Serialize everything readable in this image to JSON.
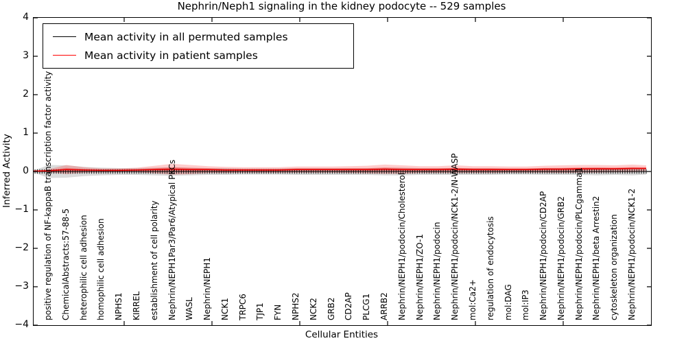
{
  "chart_data": {
    "type": "line",
    "title": "Nephrin/Neph1 signaling in the kidney podocyte -- 529 samples",
    "xlabel": "Cellular Entities",
    "ylabel": "Inferred Activity",
    "ylim": [
      -4,
      4
    ],
    "grid": false,
    "legend_position": "upper left",
    "y_tick_labels": [
      "4",
      "3",
      "2",
      "1",
      "0",
      "−1",
      "−2",
      "−3",
      "−4"
    ],
    "y_tick_values": [
      4,
      3,
      2,
      1,
      0,
      -1,
      -2,
      -3,
      -4
    ],
    "categories": [
      "positive regulation of NF-kappaB transcription factor activity",
      "ChemicalAbstracts:57-88-5",
      "heterophilic cell adhesion",
      "homophilic cell adhesion",
      "NPHS1",
      "KIRREL",
      "establishment of cell polarity",
      "Nephrin/NEPH1Par3/Par6/Atypical PKCs",
      "WASL",
      "Nephrin/NEPH1",
      "NCK1",
      "TRPC6",
      "TJP1",
      "FYN",
      "NPHS2",
      "NCK2",
      "GRB2",
      "CD2AP",
      "PLCG1",
      "ARRB2",
      "Nephrin/NEPH1/podocin/Cholesterol",
      "Nephrin/NEPH1/ZO-1",
      "Nephrin/NEPH1/podocin",
      "Nephrin/NEPH1/podocin/NCK1-2/N-WASP",
      "mol:Ca2+",
      "regulation of endocytosis",
      "mol:DAG",
      "mol:IP3",
      "Nephrin/NEPH1/podocin/CD2AP",
      "Nephrin/NEPH1/podocin/GRB2",
      "Nephrin/NEPH1/podocin/PLCgamma1",
      "Nephrin/NEPH1/beta Arrestin2",
      "cytoskeleton organization",
      "Nephrin/NEPH1/podocin/NCK1-2"
    ],
    "series": [
      {
        "name": "Mean activity in all permuted samples",
        "color": "#000000",
        "values": [
          0,
          0,
          0,
          0,
          0,
          0,
          0,
          0,
          0,
          0,
          0,
          0,
          0,
          0,
          0,
          0,
          0,
          0,
          0,
          0,
          0,
          0,
          0,
          0,
          0,
          0,
          0,
          0,
          0,
          0,
          0,
          0,
          0,
          0
        ],
        "band_std": [
          0.17,
          0.16,
          0.12,
          0.1,
          0.09,
          0.09,
          0.1,
          0.11,
          0.1,
          0.09,
          0.09,
          0.08,
          0.08,
          0.08,
          0.09,
          0.09,
          0.09,
          0.09,
          0.09,
          0.1,
          0.1,
          0.09,
          0.09,
          0.09,
          0.09,
          0.09,
          0.08,
          0.08,
          0.09,
          0.09,
          0.09,
          0.1,
          0.09,
          0.1
        ]
      },
      {
        "name": "Mean activity in patient samples",
        "color": "#ff0000",
        "values": [
          0.02,
          0.05,
          0.04,
          0.03,
          0.03,
          0.04,
          0.05,
          0.06,
          0.05,
          0.05,
          0.04,
          0.04,
          0.04,
          0.04,
          0.05,
          0.05,
          0.05,
          0.05,
          0.05,
          0.06,
          0.05,
          0.05,
          0.05,
          0.06,
          0.05,
          0.05,
          0.05,
          0.05,
          0.06,
          0.06,
          0.07,
          0.07,
          0.07,
          0.08
        ],
        "band_std": [
          0.04,
          0.12,
          0.07,
          0.05,
          0.05,
          0.06,
          0.1,
          0.14,
          0.12,
          0.09,
          0.08,
          0.07,
          0.07,
          0.07,
          0.08,
          0.08,
          0.08,
          0.09,
          0.1,
          0.12,
          0.11,
          0.09,
          0.09,
          0.1,
          0.09,
          0.09,
          0.08,
          0.08,
          0.09,
          0.1,
          0.1,
          0.1,
          0.09,
          0.1
        ]
      }
    ]
  }
}
